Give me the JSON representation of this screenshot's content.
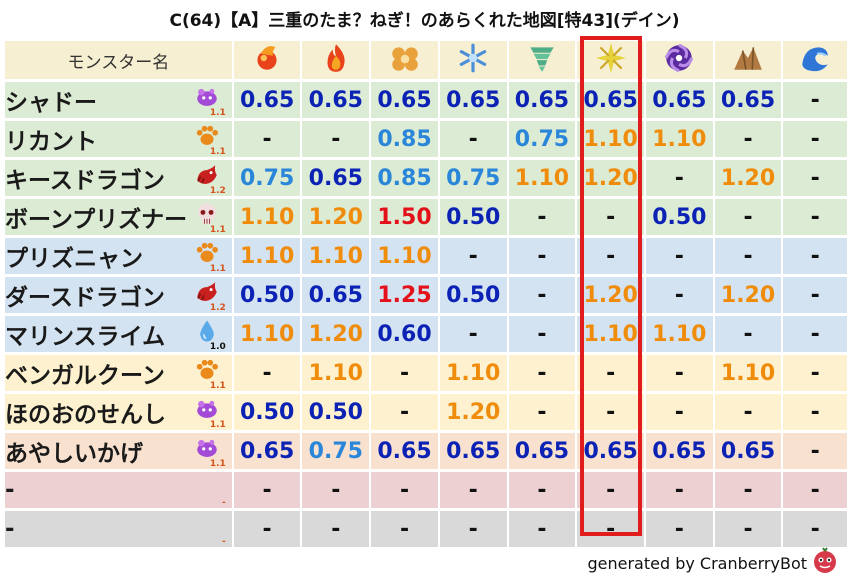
{
  "title": "C(64)【A】三重のたま？ねぎ！のあらくれた地図[特43](デイン)",
  "header": {
    "name_label": "モンスター名",
    "columns": [
      {
        "icon": "fire-orb-icon"
      },
      {
        "icon": "flame-icon"
      },
      {
        "icon": "clover-icon"
      },
      {
        "icon": "snowflake-icon"
      },
      {
        "icon": "tornado-icon"
      },
      {
        "icon": "sparkle-icon"
      },
      {
        "icon": "dark-vortex-icon"
      },
      {
        "icon": "rock-icon"
      },
      {
        "icon": "wave-icon"
      }
    ]
  },
  "colors": {
    "green": "#dcebd3",
    "blue": "#d4e3f1",
    "yellow": "#fdf1cf",
    "peach": "#f8e1cf",
    "pink": "#ecd0d2",
    "gray": "#d9d9d9",
    "v_blue": "#0b22b5",
    "v_lblue": "#2986d9",
    "v_orange": "#f08c0c",
    "v_red": "#e3121a",
    "highlight": "#e01c1c"
  },
  "rows": [
    {
      "name": "シャドー",
      "bg": "green",
      "icon": "slime-ghost-icon",
      "level": "1.1",
      "values": [
        [
          "0.65",
          "blue"
        ],
        [
          "0.65",
          "blue"
        ],
        [
          "0.65",
          "blue"
        ],
        [
          "0.65",
          "blue"
        ],
        [
          "0.65",
          "blue"
        ],
        [
          "0.65",
          "blue"
        ],
        [
          "0.65",
          "blue"
        ],
        [
          "0.65",
          "blue"
        ],
        [
          "-",
          "dash"
        ]
      ]
    },
    {
      "name": "リカント",
      "bg": "green",
      "icon": "paw-icon",
      "level": "1.1",
      "values": [
        [
          "-",
          "dash"
        ],
        [
          "-",
          "dash"
        ],
        [
          "0.85",
          "lblue"
        ],
        [
          "-",
          "dash"
        ],
        [
          "0.75",
          "lblue"
        ],
        [
          "1.10",
          "orange"
        ],
        [
          "1.10",
          "orange"
        ],
        [
          "-",
          "dash"
        ],
        [
          "-",
          "dash"
        ]
      ]
    },
    {
      "name": "キースドラゴン",
      "bg": "green",
      "icon": "dragon-icon",
      "level": "1.2",
      "values": [
        [
          "0.75",
          "lblue"
        ],
        [
          "0.65",
          "blue"
        ],
        [
          "0.85",
          "lblue"
        ],
        [
          "0.75",
          "lblue"
        ],
        [
          "1.10",
          "orange"
        ],
        [
          "1.20",
          "orange"
        ],
        [
          "-",
          "dash"
        ],
        [
          "1.20",
          "orange"
        ],
        [
          "-",
          "dash"
        ]
      ]
    },
    {
      "name": "ボーンプリズナー",
      "bg": "green",
      "icon": "skull-icon",
      "level": "1.1",
      "values": [
        [
          "1.10",
          "orange"
        ],
        [
          "1.20",
          "orange"
        ],
        [
          "1.50",
          "red"
        ],
        [
          "0.50",
          "blue"
        ],
        [
          "-",
          "dash"
        ],
        [
          "-",
          "dash"
        ],
        [
          "0.50",
          "blue"
        ],
        [
          "-",
          "dash"
        ],
        [
          "-",
          "dash"
        ]
      ]
    },
    {
      "name": "プリズニャン",
      "bg": "blue",
      "icon": "paw-icon",
      "level": "1.1",
      "values": [
        [
          "1.10",
          "orange"
        ],
        [
          "1.10",
          "orange"
        ],
        [
          "1.10",
          "orange"
        ],
        [
          "-",
          "dash"
        ],
        [
          "-",
          "dash"
        ],
        [
          "-",
          "dash"
        ],
        [
          "-",
          "dash"
        ],
        [
          "-",
          "dash"
        ],
        [
          "-",
          "dash"
        ]
      ]
    },
    {
      "name": "ダースドラゴン",
      "bg": "blue",
      "icon": "dragon-icon",
      "level": "1.2",
      "values": [
        [
          "0.50",
          "blue"
        ],
        [
          "0.65",
          "blue"
        ],
        [
          "1.25",
          "red"
        ],
        [
          "0.50",
          "blue"
        ],
        [
          "-",
          "dash"
        ],
        [
          "1.20",
          "orange"
        ],
        [
          "-",
          "dash"
        ],
        [
          "1.20",
          "orange"
        ],
        [
          "-",
          "dash"
        ]
      ]
    },
    {
      "name": "マリンスライム",
      "bg": "blue",
      "icon": "water-drop-icon",
      "level": "1.0",
      "values": [
        [
          "1.10",
          "orange"
        ],
        [
          "1.20",
          "orange"
        ],
        [
          "0.60",
          "blue"
        ],
        [
          "-",
          "dash"
        ],
        [
          "-",
          "dash"
        ],
        [
          "1.10",
          "orange"
        ],
        [
          "1.10",
          "orange"
        ],
        [
          "-",
          "dash"
        ],
        [
          "-",
          "dash"
        ]
      ]
    },
    {
      "name": "ベンガルクーン",
      "bg": "yellow",
      "icon": "paw-icon",
      "level": "1.1",
      "values": [
        [
          "-",
          "dash"
        ],
        [
          "1.10",
          "orange"
        ],
        [
          "-",
          "dash"
        ],
        [
          "1.10",
          "orange"
        ],
        [
          "-",
          "dash"
        ],
        [
          "-",
          "dash"
        ],
        [
          "-",
          "dash"
        ],
        [
          "1.10",
          "orange"
        ],
        [
          "-",
          "dash"
        ]
      ]
    },
    {
      "name": "ほのおのせんし",
      "bg": "yellow",
      "icon": "slime-ghost-icon",
      "level": "1.1",
      "values": [
        [
          "0.50",
          "blue"
        ],
        [
          "0.50",
          "blue"
        ],
        [
          "-",
          "dash"
        ],
        [
          "1.20",
          "orange"
        ],
        [
          "-",
          "dash"
        ],
        [
          "-",
          "dash"
        ],
        [
          "-",
          "dash"
        ],
        [
          "-",
          "dash"
        ],
        [
          "-",
          "dash"
        ]
      ]
    },
    {
      "name": "あやしいかげ",
      "bg": "peach",
      "icon": "slime-ghost-icon",
      "level": "1.1",
      "values": [
        [
          "0.65",
          "blue"
        ],
        [
          "0.75",
          "lblue"
        ],
        [
          "0.65",
          "blue"
        ],
        [
          "0.65",
          "blue"
        ],
        [
          "0.65",
          "blue"
        ],
        [
          "0.65",
          "blue"
        ],
        [
          "0.65",
          "blue"
        ],
        [
          "0.65",
          "blue"
        ],
        [
          "-",
          "dash"
        ]
      ]
    },
    {
      "name": "-",
      "bg": "pink",
      "icon": "",
      "level": "-",
      "values": [
        [
          "-",
          "dash"
        ],
        [
          "-",
          "dash"
        ],
        [
          "-",
          "dash"
        ],
        [
          "-",
          "dash"
        ],
        [
          "-",
          "dash"
        ],
        [
          "-",
          "dash"
        ],
        [
          "-",
          "dash"
        ],
        [
          "-",
          "dash"
        ],
        [
          "-",
          "dash"
        ]
      ]
    },
    {
      "name": "-",
      "bg": "gray",
      "icon": "",
      "level": "-",
      "values": [
        [
          "-",
          "dash"
        ],
        [
          "-",
          "dash"
        ],
        [
          "-",
          "dash"
        ],
        [
          "-",
          "dash"
        ],
        [
          "-",
          "dash"
        ],
        [
          "-",
          "dash"
        ],
        [
          "-",
          "dash"
        ],
        [
          "-",
          "dash"
        ],
        [
          "-",
          "dash"
        ]
      ]
    }
  ],
  "footer": {
    "text": "generated by CranberryBot",
    "icon": "cranberry-bot-icon"
  }
}
